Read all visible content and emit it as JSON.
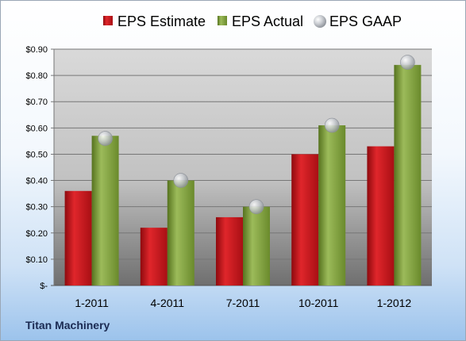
{
  "company": "Titan Machinery",
  "chart_data": {
    "type": "bar",
    "categories": [
      "1-2011",
      "4-2011",
      "7-2011",
      "10-2011",
      "1-2012"
    ],
    "series": [
      {
        "name": "EPS Estimate",
        "kind": "bar",
        "color": "#c0161b",
        "values": [
          0.36,
          0.22,
          0.26,
          0.5,
          0.53
        ]
      },
      {
        "name": "EPS Actual",
        "kind": "bar",
        "color": "#7a9a3a",
        "values": [
          0.57,
          0.4,
          0.3,
          0.61,
          0.84
        ]
      },
      {
        "name": "EPS GAAP",
        "kind": "marker",
        "color": "#b8bcc2",
        "values": [
          0.56,
          0.4,
          0.3,
          0.61,
          0.85
        ]
      }
    ],
    "ylim": [
      0,
      0.9
    ],
    "yticks": [
      {
        "value": 0.9,
        "label": "$0.90"
      },
      {
        "value": 0.8,
        "label": "$0.80"
      },
      {
        "value": 0.7,
        "label": "$0.70"
      },
      {
        "value": 0.6,
        "label": "$0.60"
      },
      {
        "value": 0.5,
        "label": "$0.50"
      },
      {
        "value": 0.4,
        "label": "$0.40"
      },
      {
        "value": 0.3,
        "label": "$0.30"
      },
      {
        "value": 0.2,
        "label": "$0.20"
      },
      {
        "value": 0.1,
        "label": "$0.10"
      },
      {
        "value": 0.0,
        "label": "$-"
      }
    ],
    "grid": true,
    "legend_position": "top",
    "title": "",
    "xlabel": "",
    "ylabel": ""
  }
}
